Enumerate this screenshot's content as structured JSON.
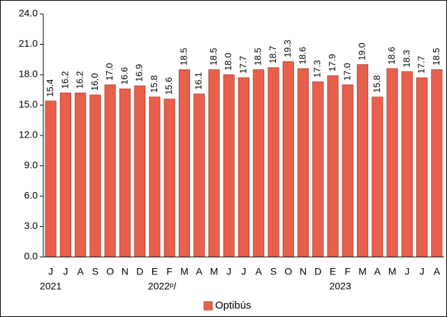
{
  "chart_data": {
    "type": "bar",
    "categories": [
      "J",
      "J",
      "A",
      "S",
      "O",
      "N",
      "D",
      "E",
      "F",
      "M",
      "A",
      "M",
      "J",
      "J",
      "A",
      "S",
      "O",
      "N",
      "D",
      "E",
      "F",
      "M",
      "A",
      "M",
      "J",
      "J",
      "A"
    ],
    "groups": [
      "2021",
      "2022ᵖ/",
      "2023"
    ],
    "series": [
      {
        "name": "Optibús",
        "color": "#e8604c",
        "values": [
          15.4,
          16.2,
          16.2,
          16.0,
          17.0,
          16.6,
          16.9,
          15.8,
          15.6,
          18.5,
          16.1,
          18.5,
          18.0,
          17.7,
          18.5,
          18.7,
          19.3,
          18.6,
          17.3,
          17.9,
          17.0,
          19.0,
          15.8,
          18.6,
          18.3,
          17.7,
          18.5
        ],
        "value_labels": [
          "15.4",
          "16.2",
          "16.2",
          "16.0",
          "17.0",
          "16.6",
          "16.9",
          "15.8",
          "15.6",
          "18.5",
          "16.1",
          "18.5",
          "18.0",
          "17.7",
          "18.5",
          "18.7",
          "19.3",
          "18.6",
          "17.3",
          "17.9",
          "17.0",
          "19.0",
          "15.8",
          "18.6",
          "18.3",
          "17.7",
          "18.5"
        ]
      }
    ],
    "ylim": [
      0,
      24
    ],
    "yticks": [
      {
        "value": 0,
        "label": "0.0"
      },
      {
        "value": 3,
        "label": "3.0"
      },
      {
        "value": 6,
        "label": "6.0"
      },
      {
        "value": 9,
        "label": "9.0"
      },
      {
        "value": 12,
        "label": "12.0"
      },
      {
        "value": 15,
        "label": "15.0"
      },
      {
        "value": 18,
        "label": "18.0"
      },
      {
        "value": 21,
        "label": "21.0"
      },
      {
        "value": 24,
        "label": "24.0"
      }
    ],
    "grid": false,
    "legend": "bottom"
  }
}
